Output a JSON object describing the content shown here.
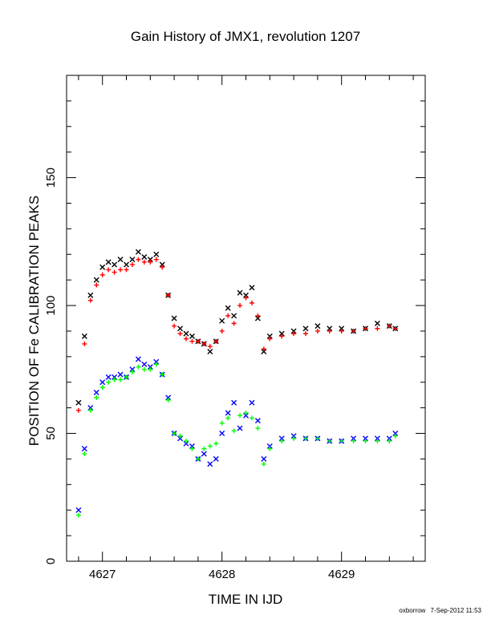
{
  "page": {
    "title": "Gain History of JMX1, revolution 1207",
    "footer_user": "oxborrow",
    "footer_timestamp": "7-Sep-2012 11:53"
  },
  "chart_data": {
    "type": "scatter",
    "title": "Gain History of JMX1, revolution 1207",
    "xlabel": "TIME IN IJD",
    "ylabel": "POSITION OF Fe CALIBRATION PEAKS",
    "xlim": [
      4626.7,
      4629.7
    ],
    "ylim": [
      0,
      190
    ],
    "x_ticks": [
      4627,
      4628,
      4629
    ],
    "x_tick_labels": [
      "4627",
      "4628",
      "4629"
    ],
    "y_ticks": [
      0,
      50,
      100,
      150
    ],
    "y_tick_labels": [
      "0",
      "50",
      "100",
      "150"
    ],
    "grid": false,
    "legend": "none",
    "series": [
      {
        "color": "#000000",
        "marker": "x",
        "x": [
          4626.8,
          4626.85,
          4626.9,
          4626.95,
          4627.0,
          4627.05,
          4627.1,
          4627.15,
          4627.2,
          4627.25,
          4627.3,
          4627.35,
          4627.4,
          4627.45,
          4627.5,
          4627.55,
          4627.6,
          4627.65,
          4627.7,
          4627.75,
          4627.8,
          4627.85,
          4627.9,
          4627.95,
          4628.0,
          4628.05,
          4628.1,
          4628.15,
          4628.2,
          4628.25,
          4628.3,
          4628.35,
          4628.4,
          4628.5,
          4628.6,
          4628.7,
          4628.8,
          4628.9,
          4629.0,
          4629.1,
          4629.2,
          4629.3,
          4629.4,
          4629.45
        ],
        "y": [
          62,
          88,
          104,
          110,
          115,
          117,
          116,
          118,
          116,
          118,
          121,
          119,
          118,
          120,
          116,
          104,
          95,
          91,
          89,
          88,
          86,
          85,
          82,
          86,
          94,
          99,
          96,
          105,
          104,
          107,
          95,
          82,
          88,
          89,
          90,
          91,
          92,
          91,
          91,
          90,
          91,
          93,
          92,
          91
        ]
      },
      {
        "color": "#ff0000",
        "marker": "+",
        "x": [
          4626.8,
          4626.85,
          4626.9,
          4626.95,
          4627.0,
          4627.05,
          4627.1,
          4627.15,
          4627.2,
          4627.25,
          4627.3,
          4627.35,
          4627.4,
          4627.45,
          4627.5,
          4627.55,
          4627.6,
          4627.65,
          4627.7,
          4627.75,
          4627.8,
          4627.85,
          4627.9,
          4627.95,
          4628.0,
          4628.05,
          4628.1,
          4628.15,
          4628.2,
          4628.25,
          4628.3,
          4628.35,
          4628.4,
          4628.5,
          4628.6,
          4628.7,
          4628.8,
          4628.9,
          4629.0,
          4629.1,
          4629.2,
          4629.3,
          4629.4,
          4629.45
        ],
        "y": [
          59,
          85,
          102,
          108,
          112,
          114,
          113,
          114,
          114,
          116,
          118,
          117,
          117,
          118,
          115,
          104,
          92,
          89,
          87,
          86,
          86,
          85,
          84,
          86,
          90,
          96,
          93,
          100,
          103,
          101,
          96,
          83,
          87,
          88,
          89,
          89,
          90,
          90,
          90,
          90,
          91,
          91,
          92,
          91
        ]
      },
      {
        "color": "#0000ff",
        "marker": "x",
        "x": [
          4626.8,
          4626.85,
          4626.9,
          4626.95,
          4627.0,
          4627.05,
          4627.1,
          4627.15,
          4627.2,
          4627.25,
          4627.3,
          4627.35,
          4627.4,
          4627.45,
          4627.5,
          4627.55,
          4627.6,
          4627.65,
          4627.7,
          4627.75,
          4627.8,
          4627.85,
          4627.9,
          4627.95,
          4628.0,
          4628.05,
          4628.1,
          4628.15,
          4628.2,
          4628.25,
          4628.3,
          4628.35,
          4628.4,
          4628.5,
          4628.6,
          4628.7,
          4628.8,
          4628.9,
          4629.0,
          4629.1,
          4629.2,
          4629.3,
          4629.4,
          4629.45
        ],
        "y": [
          20,
          44,
          60,
          66,
          70,
          72,
          72,
          73,
          72,
          75,
          79,
          77,
          76,
          78,
          73,
          64,
          50,
          48,
          46,
          45,
          40,
          42,
          38,
          40,
          50,
          58,
          62,
          52,
          57,
          62,
          55,
          40,
          45,
          48,
          49,
          48,
          48,
          47,
          47,
          48,
          48,
          48,
          48,
          50
        ]
      },
      {
        "color": "#00ff00",
        "marker": "+",
        "x": [
          4626.8,
          4626.85,
          4626.9,
          4626.95,
          4627.0,
          4627.05,
          4627.1,
          4627.15,
          4627.2,
          4627.25,
          4627.3,
          4627.35,
          4627.4,
          4627.45,
          4627.5,
          4627.55,
          4627.6,
          4627.65,
          4627.7,
          4627.75,
          4627.8,
          4627.85,
          4627.9,
          4627.95,
          4628.0,
          4628.05,
          4628.1,
          4628.15,
          4628.2,
          4628.25,
          4628.3,
          4628.35,
          4628.4,
          4628.5,
          4628.6,
          4628.7,
          4628.8,
          4628.9,
          4629.0,
          4629.1,
          4629.2,
          4629.3,
          4629.4,
          4629.45
        ],
        "y": [
          18,
          42,
          59,
          64,
          68,
          70,
          71,
          71,
          72,
          74,
          76,
          75,
          75,
          77,
          73,
          63,
          50,
          49,
          47,
          44,
          40,
          44,
          45,
          46,
          54,
          56,
          51,
          57,
          58,
          56,
          52,
          38,
          44,
          47,
          48,
          48,
          48,
          47,
          47,
          47,
          47,
          47,
          47,
          49
        ]
      }
    ]
  }
}
